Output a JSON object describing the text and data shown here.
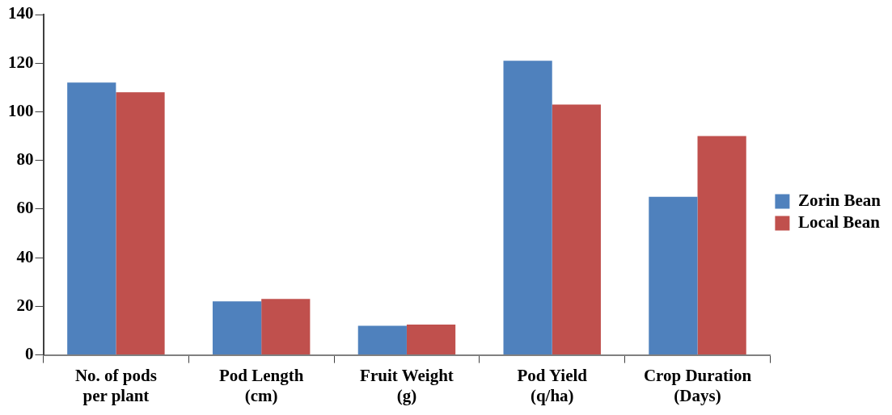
{
  "chart_data": {
    "type": "bar",
    "categories": [
      "No. of pods\nper plant",
      "Pod Length\n(cm)",
      "Fruit Weight\n(g)",
      "Pod Yield\n(q/ha)",
      "Crop Duration\n(Days)"
    ],
    "series": [
      {
        "name": "Zorin Bean",
        "color": "#4f81bd",
        "values": [
          112,
          22,
          12,
          121,
          65
        ]
      },
      {
        "name": "Local Bean",
        "color": "#c0504d",
        "values": [
          108,
          23,
          12.5,
          103,
          90
        ]
      }
    ],
    "ylim": [
      0,
      140
    ],
    "yticks": [
      0,
      20,
      40,
      60,
      80,
      100,
      120,
      140
    ],
    "grid": false,
    "legend": "right"
  }
}
